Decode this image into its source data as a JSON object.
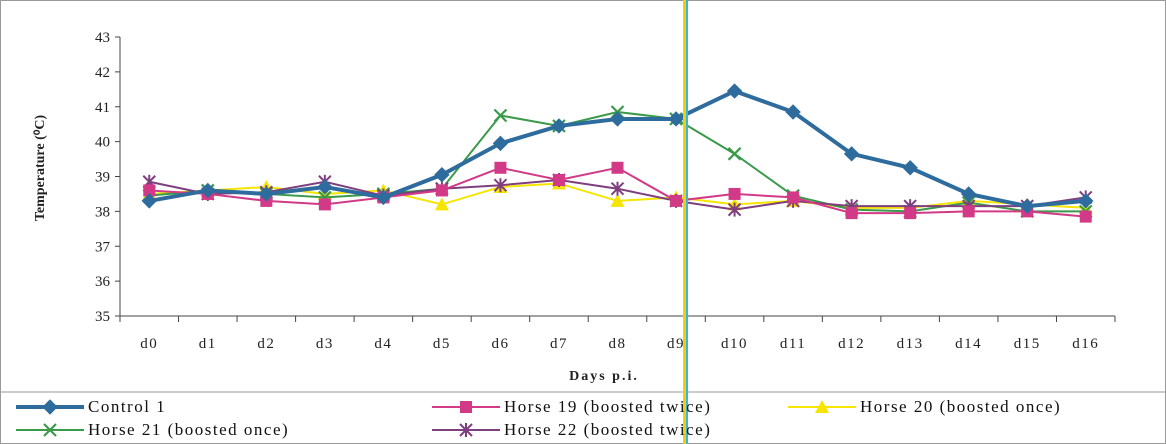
{
  "chart_data": {
    "type": "line",
    "xlabel": "Days p.i.",
    "ylabel": "Temperature (⁰C)",
    "ylim": [
      35,
      43
    ],
    "yticks": [
      35,
      36,
      37,
      38,
      39,
      40,
      41,
      42,
      43
    ],
    "categories": [
      "d0",
      "d1",
      "d2",
      "d3",
      "d4",
      "d5",
      "d6",
      "d7",
      "d8",
      "d9",
      "d10",
      "d11",
      "d12",
      "d13",
      "d14",
      "d15",
      "d16"
    ],
    "grid": false,
    "legend_position": "bottom",
    "series": [
      {
        "name": "Control 1",
        "color": "#2f6c9e",
        "marker": "diamond",
        "values": [
          38.3,
          38.6,
          38.5,
          38.7,
          38.4,
          39.05,
          39.95,
          40.45,
          40.65,
          40.65,
          41.45,
          40.85,
          39.65,
          39.25,
          38.5,
          38.15,
          38.3
        ]
      },
      {
        "name": "Horse 19 (boosted twice)",
        "color": "#d23a87",
        "marker": "square",
        "values": [
          38.6,
          38.5,
          38.3,
          38.2,
          38.4,
          38.6,
          39.25,
          38.9,
          39.25,
          38.3,
          38.5,
          38.4,
          37.95,
          37.95,
          38.0,
          38.0,
          37.85
        ]
      },
      {
        "name": "Horse 20 (boosted once)",
        "color": "#f5e500",
        "marker": "triangle",
        "values": [
          38.5,
          38.6,
          38.7,
          38.5,
          38.6,
          38.2,
          38.7,
          38.8,
          38.3,
          38.4,
          38.2,
          38.3,
          38.1,
          38.1,
          38.3,
          38.2,
          38.1
        ]
      },
      {
        "name": "Horse 21 (boosted once)",
        "color": "#3a9a4a",
        "marker": "x",
        "values": [
          38.45,
          38.6,
          38.5,
          38.4,
          38.5,
          38.65,
          40.75,
          40.45,
          40.85,
          40.65,
          39.65,
          38.45,
          38.05,
          38.0,
          38.25,
          38.0,
          38.0
        ]
      },
      {
        "name": "Horse 22 (boosted twice)",
        "color": "#7f3f7f",
        "marker": "star",
        "values": [
          38.85,
          38.5,
          38.55,
          38.85,
          38.45,
          38.65,
          38.75,
          38.9,
          38.65,
          38.3,
          38.05,
          38.3,
          38.15,
          38.15,
          38.15,
          38.15,
          38.4
        ]
      }
    ]
  }
}
